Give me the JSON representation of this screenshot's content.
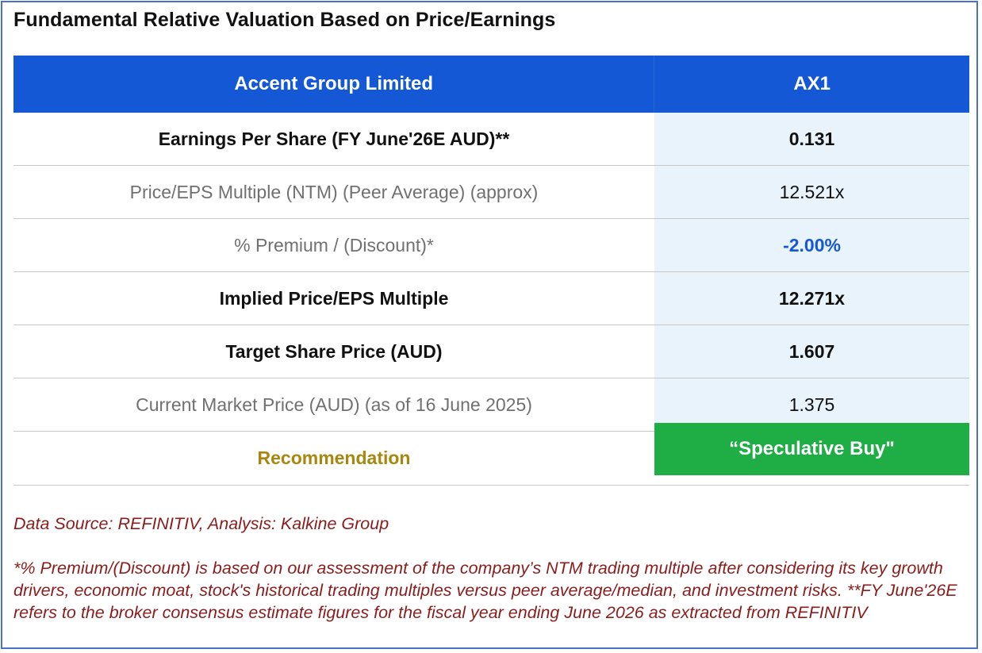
{
  "title": "Fundamental Relative Valuation Based on Price/Earnings",
  "table": {
    "header": {
      "company": "Accent Group Limited",
      "ticker": "AX1"
    },
    "rows": [
      {
        "label": "Earnings Per Share (FY June'26E AUD)**",
        "value": "0.131"
      },
      {
        "label": "Price/EPS Multiple (NTM) (Peer Average) (approx)",
        "value": "12.521x"
      },
      {
        "label": "% Premium / (Discount)*",
        "value": "-2.00%"
      },
      {
        "label": "Implied Price/EPS Multiple",
        "value": "12.271x"
      },
      {
        "label": "Target Share Price (AUD)",
        "value": "1.607"
      },
      {
        "label": "Current Market Price (AUD) (as of 16 June 2025)",
        "value": "1.375"
      }
    ],
    "recommendation": {
      "label": "Recommendation",
      "value": "“Speculative Buy\""
    }
  },
  "notes": {
    "source": "Data Source: REFINITIV, Analysis: Kalkine Group",
    "footnote": "*% Premium/(Discount) is based on our assessment of the company’s NTM trading multiple after considering its key growth drivers, economic moat, stock's historical trading multiples versus peer average/median, and investment risks. **FY June'26E refers to the broker consensus estimate figures for the fiscal year ending June 2026 as extracted from REFINITIV"
  },
  "colors": {
    "header_bg": "#1558d6",
    "value_col_bg": "#e9f3fb",
    "recommendation_bg": "#1fae45",
    "recommendation_label": "#a8870f",
    "note_text": "#8b1c1c"
  }
}
